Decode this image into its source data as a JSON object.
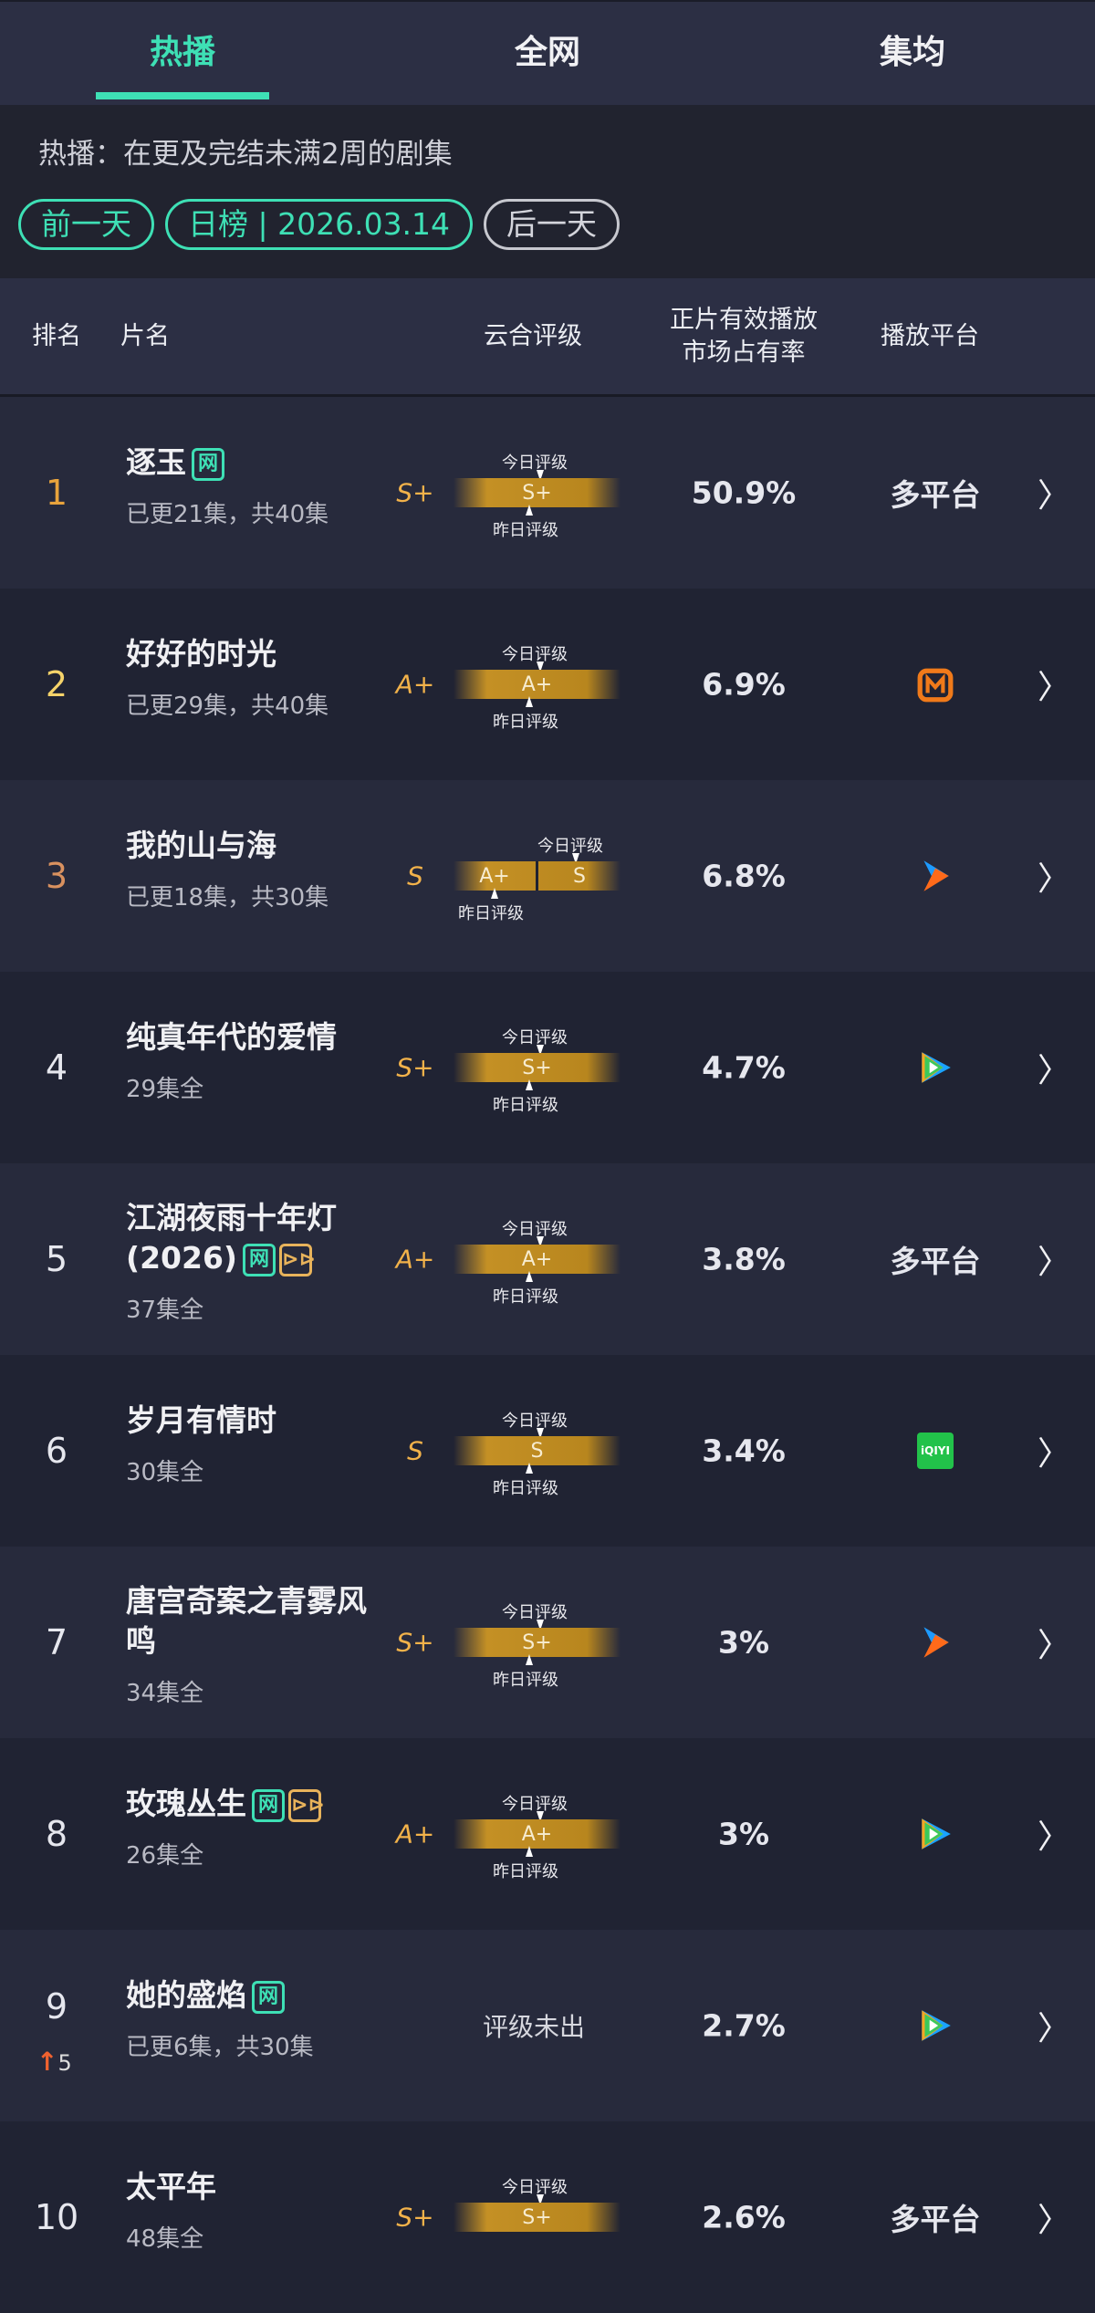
{
  "tabs": [
    {
      "label": "热播",
      "active": true
    },
    {
      "label": "全网",
      "active": false
    },
    {
      "label": "集均",
      "active": false
    }
  ],
  "intro": {
    "desc": "热播：在更及完结未满2周的剧集",
    "prev": "前一天",
    "date": "日榜 | 2026.03.14",
    "next": "后一天"
  },
  "columns": {
    "rank": "排名",
    "title": "片名",
    "grade": "云合评级",
    "share": "正片有效播放\n市场占有率",
    "platform": "播放平台"
  },
  "grade_labels": {
    "today": "今日评级",
    "yesterday": "昨日评级",
    "none": "评级未出"
  },
  "colors": {
    "accent": "#3ee0b5",
    "grade": "#f2b24a",
    "rank1": "#e8a33c",
    "rank2": "#f5d36a",
    "rank3": "#d9915f",
    "up": "#f0622f"
  },
  "rows": [
    {
      "rank": "1",
      "title": "逐玉",
      "tags": [
        "网"
      ],
      "sub": "已更21集，共40集",
      "grade": "S+",
      "bar": [
        "S+"
      ],
      "share": "50.9%",
      "platform": "多平台",
      "platform_icon": "multi"
    },
    {
      "rank": "2",
      "title": "好好的时光",
      "tags": [],
      "sub": "已更29集，共40集",
      "grade": "A+",
      "bar": [
        "A+"
      ],
      "share": "6.9%",
      "platform": "",
      "platform_icon": "mango-tv-icon"
    },
    {
      "rank": "3",
      "title": "我的山与海",
      "tags": [],
      "sub": "已更18集，共30集",
      "grade": "S",
      "bar": [
        "A+",
        "S"
      ],
      "share": "6.8%",
      "platform": "",
      "platform_icon": "youku-icon"
    },
    {
      "rank": "4",
      "title": "纯真年代的爱情",
      "tags": [],
      "sub": "29集全",
      "grade": "S+",
      "bar": [
        "S+"
      ],
      "share": "4.7%",
      "platform": "",
      "platform_icon": "tencent-video-icon"
    },
    {
      "rank": "5",
      "title": "江湖夜雨十年灯(2026)",
      "tags": [
        "网",
        "vip"
      ],
      "sub": "37集全",
      "grade": "A+",
      "bar": [
        "A+"
      ],
      "share": "3.8%",
      "platform": "多平台",
      "platform_icon": "multi"
    },
    {
      "rank": "6",
      "title": "岁月有情时",
      "tags": [],
      "sub": "30集全",
      "grade": "S",
      "bar": [
        "S"
      ],
      "share": "3.4%",
      "platform": "",
      "platform_icon": "iqiyi-icon",
      "iqiyi": "iQIYI"
    },
    {
      "rank": "7",
      "title": "唐宫奇案之青雾风鸣",
      "tags": [],
      "sub": "34集全",
      "grade": "S+",
      "bar": [
        "S+"
      ],
      "share": "3%",
      "platform": "",
      "platform_icon": "youku-icon"
    },
    {
      "rank": "8",
      "title": "玫瑰丛生",
      "tags": [
        "网",
        "vip"
      ],
      "sub": "26集全",
      "grade": "A+",
      "bar": [
        "A+"
      ],
      "share": "3%",
      "platform": "",
      "platform_icon": "tencent-video-icon"
    },
    {
      "rank": "9",
      "change": "5",
      "title": "她的盛焰",
      "tags": [
        "网"
      ],
      "sub": "已更6集，共30集",
      "grade": "",
      "bar": [],
      "share": "2.7%",
      "platform": "",
      "platform_icon": "tencent-video-icon"
    },
    {
      "rank": "10",
      "title": "太平年",
      "tags": [],
      "sub": "48集全",
      "grade": "S+",
      "bar": [
        "S+"
      ],
      "no_yesterday": true,
      "share": "2.6%",
      "platform": "多平台",
      "platform_icon": "multi"
    }
  ]
}
